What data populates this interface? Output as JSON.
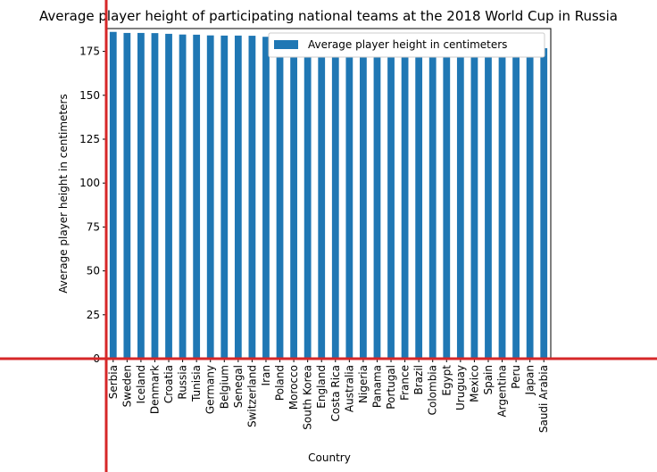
{
  "chart_data": {
    "type": "bar",
    "title": "Average player height of participating national teams at the 2018 World Cup in Russia",
    "xlabel": "Country",
    "ylabel": "Average player height in centimeters",
    "ylim": [
      0,
      188
    ],
    "yticks": [
      0,
      25,
      50,
      75,
      100,
      125,
      150,
      175
    ],
    "grid": false,
    "legend_position": "top-right",
    "categories": [
      "Serbia",
      "Sweden",
      "Iceland",
      "Denmark",
      "Croatia",
      "Russia",
      "Tunisia",
      "Germany",
      "Belgium",
      "Senegal",
      "Switzerland",
      "Iran",
      "Poland",
      "Morocco",
      "South Korea",
      "England",
      "Costa Rica",
      "Australia",
      "Nigeria",
      "Panama",
      "Portugal",
      "France",
      "Brazil",
      "Colombia",
      "Egypt",
      "Uruguay",
      "Mexico",
      "Spain",
      "Argentina",
      "Peru",
      "Japan",
      "Saudi Arabia"
    ],
    "series": [
      {
        "name": "Average player height in centimeters",
        "color": "#1f77b4",
        "values": [
          186.1,
          185.5,
          185.5,
          185.4,
          185.0,
          184.6,
          184.5,
          184.1,
          184.0,
          184.0,
          183.9,
          183.3,
          183.0,
          182.8,
          182.4,
          182.0,
          181.8,
          181.6,
          181.5,
          181.4,
          181.2,
          181.0,
          180.8,
          180.7,
          180.6,
          180.5,
          180.3,
          180.1,
          179.9,
          179.4,
          178.8,
          176.8
        ]
      }
    ]
  },
  "overlay": {
    "crosshair_color": "#d62728"
  }
}
